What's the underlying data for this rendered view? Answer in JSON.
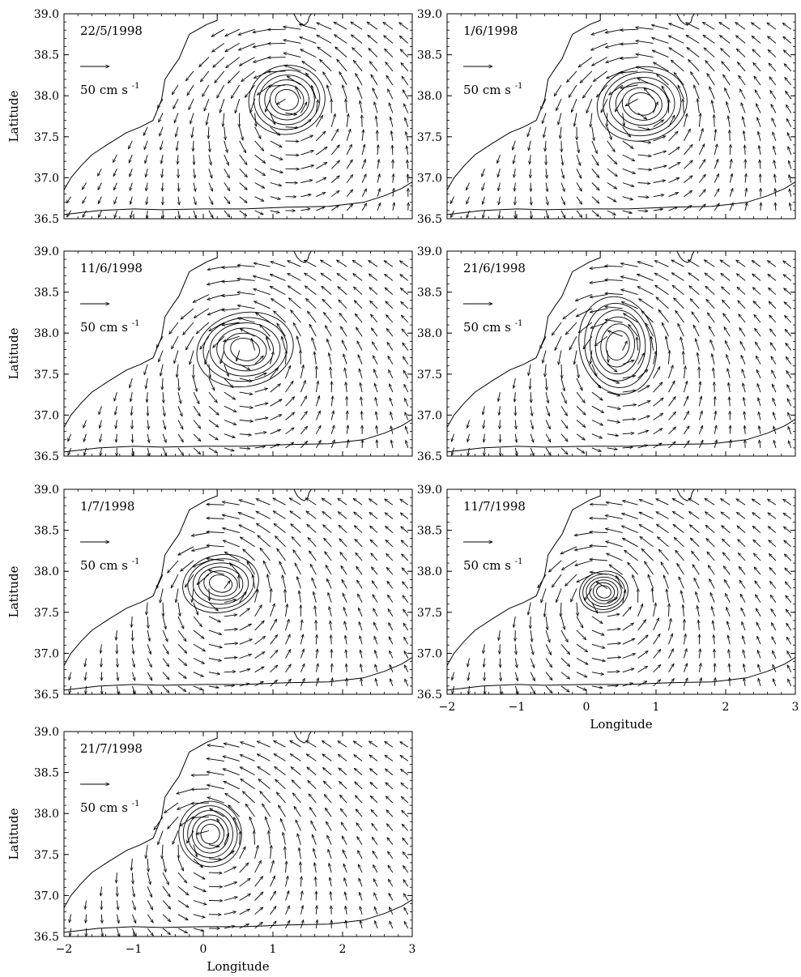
{
  "figure": {
    "ylabel": "Latitude",
    "xlabel": "Longitude",
    "scale_label": "50 cm s",
    "scale_sup": "-1"
  },
  "chart_data": [
    {
      "type": "scatter",
      "title": "22/5/1998",
      "xlabel": "",
      "ylabel": "Latitude",
      "xlim": [
        -2,
        3
      ],
      "ylim": [
        36.5,
        39.0
      ],
      "x_ticks": [
        "-2",
        "-1",
        "0",
        "1",
        "2",
        "3"
      ],
      "y_ticks": [
        "36.5",
        "37.0",
        "37.5",
        "38.0",
        "38.5",
        "39.0"
      ],
      "eddy_center": [
        1.2,
        37.95
      ],
      "eddy_radius_deg": [
        0.55,
        0.42
      ],
      "show_x_tick_labels": false
    },
    {
      "type": "scatter",
      "title": "1/6/1998",
      "xlabel": "",
      "ylabel": "",
      "xlim": [
        -2,
        3
      ],
      "ylim": [
        36.5,
        39.0
      ],
      "x_ticks": [
        "-2",
        "-1",
        "0",
        "1",
        "2",
        "3"
      ],
      "y_ticks": [
        "36.5",
        "37.0",
        "37.5",
        "38.0",
        "38.5",
        "39.0"
      ],
      "eddy_center": [
        0.8,
        37.9
      ],
      "eddy_radius_deg": [
        0.65,
        0.45
      ],
      "show_x_tick_labels": false
    },
    {
      "type": "scatter",
      "title": "11/6/1998",
      "xlabel": "",
      "ylabel": "Latitude",
      "xlim": [
        -2,
        3
      ],
      "ylim": [
        36.5,
        39.0
      ],
      "x_ticks": [
        "-2",
        "-1",
        "0",
        "1",
        "2",
        "3"
      ],
      "y_ticks": [
        "36.5",
        "37.0",
        "37.5",
        "38.0",
        "38.5",
        "39.0"
      ],
      "eddy_center": [
        0.6,
        37.8
      ],
      "eddy_radius_deg": [
        0.7,
        0.45
      ],
      "show_x_tick_labels": false
    },
    {
      "type": "scatter",
      "title": "21/6/1998",
      "xlabel": "",
      "ylabel": "",
      "xlim": [
        -2,
        3
      ],
      "ylim": [
        36.5,
        39.0
      ],
      "x_ticks": [
        "-2",
        "-1",
        "0",
        "1",
        "2",
        "3"
      ],
      "y_ticks": [
        "36.5",
        "37.0",
        "37.5",
        "38.0",
        "38.5",
        "39.0"
      ],
      "eddy_center": [
        0.45,
        37.85
      ],
      "eddy_radius_deg": [
        0.55,
        0.6
      ],
      "show_x_tick_labels": false
    },
    {
      "type": "scatter",
      "title": "1/7/1998",
      "xlabel": "",
      "ylabel": "Latitude",
      "xlim": [
        -2,
        3
      ],
      "ylim": [
        36.5,
        39.0
      ],
      "x_ticks": [
        "-2",
        "-1",
        "0",
        "1",
        "2",
        "3"
      ],
      "y_ticks": [
        "36.5",
        "37.0",
        "37.5",
        "38.0",
        "38.5",
        "39.0"
      ],
      "eddy_center": [
        0.25,
        37.85
      ],
      "eddy_radius_deg": [
        0.55,
        0.35
      ],
      "show_x_tick_labels": false
    },
    {
      "type": "scatter",
      "title": "11/7/1998",
      "xlabel": "Longitude",
      "ylabel": "",
      "xlim": [
        -2,
        3
      ],
      "ylim": [
        36.5,
        39.0
      ],
      "x_ticks": [
        "-2",
        "-1",
        "0",
        "1",
        "2",
        "3"
      ],
      "y_ticks": [
        "36.5",
        "37.0",
        "37.5",
        "38.0",
        "38.5",
        "39.0"
      ],
      "eddy_center": [
        0.25,
        37.75
      ],
      "eddy_radius_deg": [
        0.35,
        0.25
      ],
      "show_x_tick_labels": true
    },
    {
      "type": "scatter",
      "title": "21/7/1998",
      "xlabel": "Longitude",
      "ylabel": "Latitude",
      "xlim": [
        -2,
        3
      ],
      "ylim": [
        36.5,
        39.0
      ],
      "x_ticks": [
        "-2",
        "-1",
        "0",
        "1",
        "2",
        "3"
      ],
      "y_ticks": [
        "36.5",
        "37.0",
        "37.5",
        "38.0",
        "38.5",
        "39.0"
      ],
      "eddy_center": [
        0.1,
        37.75
      ],
      "eddy_radius_deg": [
        0.45,
        0.4
      ],
      "show_x_tick_labels": true
    }
  ]
}
